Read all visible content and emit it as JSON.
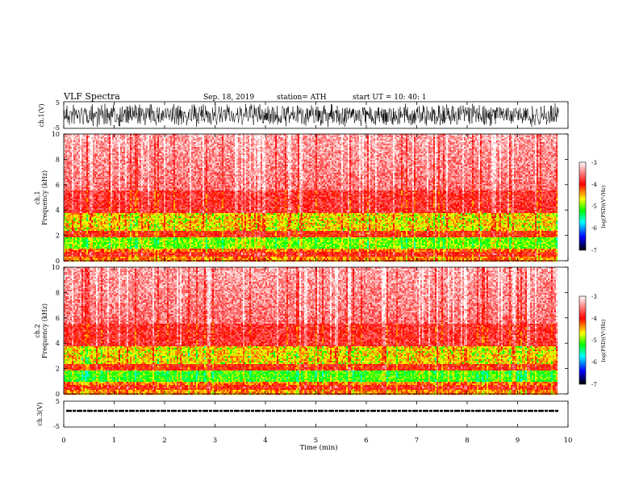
{
  "header": {
    "title": "VLF  Spectra",
    "date": "Sep. 18, 2019",
    "station": "station= ATH",
    "start": "start  UT  =   10: 40: 1"
  },
  "chart_data": [
    {
      "type": "line",
      "ylabel": "ch.1(V)",
      "ylim": [
        -5,
        5
      ],
      "yticks": [
        "5",
        "-5"
      ],
      "description_values": "dense waveform, amplitude about +/-5 V"
    },
    {
      "type": "heatmap",
      "ylabel": "ch.1\nFrequency  (kHz)",
      "ylim": [
        0,
        10
      ],
      "yticks": [
        "0",
        "2",
        "4",
        "6",
        "8",
        "10"
      ],
      "colorbar": {
        "label": "log(PSD)(V²/Hz)",
        "range": [
          -7,
          -3
        ],
        "ticks": [
          "-3",
          "-4",
          "-5",
          "-6",
          "-7"
        ]
      }
    },
    {
      "type": "heatmap",
      "ylabel": "ch.2\nFrequency  (kHz)",
      "ylim": [
        0,
        10
      ],
      "yticks": [
        "0",
        "2",
        "4",
        "6",
        "8",
        "10"
      ],
      "colorbar": {
        "label": "log(PSD)(V²/Hz)",
        "range": [
          -7,
          -3
        ],
        "ticks": [
          "-3",
          "-4",
          "-5",
          "-6",
          "-7"
        ]
      }
    },
    {
      "type": "line",
      "ylabel": "ch.3(V)",
      "ylim": [
        -5,
        5
      ],
      "yticks": [
        "5",
        "-5"
      ],
      "baseline_value": 0
    }
  ],
  "xaxis": {
    "label": "Time  (min)",
    "range": [
      0,
      10
    ],
    "ticks": [
      "0",
      "1",
      "2",
      "3",
      "4",
      "5",
      "6",
      "7",
      "8",
      "9",
      "10"
    ],
    "data_end": 9.82
  },
  "labels": {
    "ch1_panel": "ch.1(V)",
    "ch1_freq_a": "ch.1",
    "ch1_freq_b": "Frequency  (kHz)",
    "ch2_freq_a": "ch.2",
    "ch2_freq_b": "Frequency  (kHz)",
    "ch3_panel": "ch.3(V)",
    "cb1": "log(PSD)(V²/Hz)",
    "cb2": "log(PSD)(V²/Hz)"
  },
  "colors": {
    "colormap": [
      "#000000",
      "#0000ff",
      "#00ffff",
      "#00ff00",
      "#ffff00",
      "#ff0000",
      "#ffffff"
    ]
  }
}
